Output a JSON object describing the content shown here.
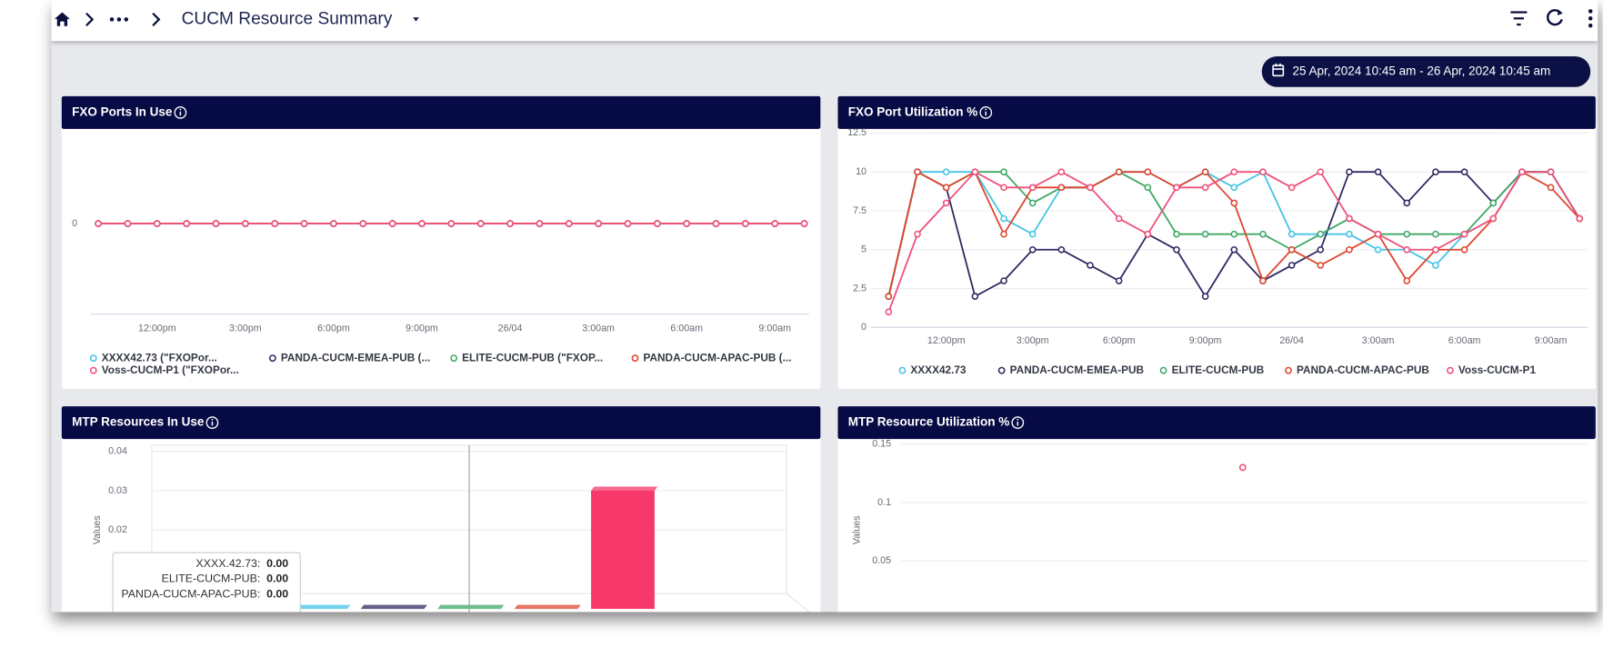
{
  "header": {
    "title": "CUCM Resource Summary"
  },
  "date_range": "25 Apr, 2024 10:45 am - 26 Apr, 2024 10:45 am",
  "chart_data": [
    {
      "type": "line",
      "title": "FXO Ports In Use",
      "x": [
        10,
        11,
        12,
        13,
        14,
        15,
        16,
        17,
        18,
        19,
        20,
        21,
        22,
        23,
        24,
        25,
        26,
        27,
        28,
        29,
        30,
        31,
        32,
        33,
        34
      ],
      "xlim": [
        9.8,
        34.2
      ],
      "xticks": [
        {
          "value": 12,
          "label": "12:00pm"
        },
        {
          "value": 15,
          "label": "3:00pm"
        },
        {
          "value": 18,
          "label": "6:00pm"
        },
        {
          "value": 21,
          "label": "9:00pm"
        },
        {
          "value": 24,
          "label": "26/04"
        },
        {
          "value": 27,
          "label": "3:00am"
        },
        {
          "value": 30,
          "label": "6:00am"
        },
        {
          "value": 33,
          "label": "9:00am"
        }
      ],
      "ylim": [
        -1,
        1
      ],
      "yticks": [
        0
      ],
      "grid": false,
      "legend": "bottom",
      "series": [
        {
          "name": "XXXX42.73 (\"FXOPor...",
          "color": "#45c4e6",
          "values": [
            0,
            0,
            0,
            0,
            0,
            0,
            0,
            0,
            0,
            0,
            0,
            0,
            0,
            0,
            0,
            0,
            0,
            0,
            0,
            0,
            0,
            0,
            0,
            0,
            0
          ]
        },
        {
          "name": "PANDA-CUCM-EMEA-PUB (...",
          "color": "#2f2a62",
          "values": [
            0,
            0,
            0,
            0,
            0,
            0,
            0,
            0,
            0,
            0,
            0,
            0,
            0,
            0,
            0,
            0,
            0,
            0,
            0,
            0,
            0,
            0,
            0,
            0,
            0
          ]
        },
        {
          "name": "ELITE-CUCM-PUB (\"FXOP...",
          "color": "#3fa864",
          "values": [
            0,
            0,
            0,
            0,
            0,
            0,
            0,
            0,
            0,
            0,
            0,
            0,
            0,
            0,
            0,
            0,
            0,
            0,
            0,
            0,
            0,
            0,
            0,
            0,
            0
          ]
        },
        {
          "name": "PANDA-CUCM-APAC-PUB (...",
          "color": "#e0452f",
          "values": [
            0,
            0,
            0,
            0,
            0,
            0,
            0,
            0,
            0,
            0,
            0,
            0,
            0,
            0,
            0,
            0,
            0,
            0,
            0,
            0,
            0,
            0,
            0,
            0,
            0
          ]
        },
        {
          "name": "Voss-CUCM-P1 (\"FXOPor...",
          "color": "#f0507a",
          "values": [
            0,
            0,
            0,
            0,
            0,
            0,
            0,
            0,
            0,
            0,
            0,
            0,
            0,
            0,
            0,
            0,
            0,
            0,
            0,
            0,
            0,
            0,
            0,
            0,
            0
          ]
        }
      ]
    },
    {
      "type": "line",
      "title": "FXO Port Utilization %",
      "x": [
        10,
        11,
        12,
        13,
        14,
        15,
        16,
        17,
        18,
        19,
        20,
        21,
        22,
        23,
        24,
        25,
        26,
        27,
        28,
        29,
        30,
        31,
        32,
        33,
        34
      ],
      "xlim": [
        9.8,
        34.2
      ],
      "xticks": [
        {
          "value": 12,
          "label": "12:00pm"
        },
        {
          "value": 15,
          "label": "3:00pm"
        },
        {
          "value": 18,
          "label": "6:00pm"
        },
        {
          "value": 21,
          "label": "9:00pm"
        },
        {
          "value": 24,
          "label": "26/04"
        },
        {
          "value": 27,
          "label": "3:00am"
        },
        {
          "value": 30,
          "label": "6:00am"
        },
        {
          "value": 33,
          "label": "9:00am"
        }
      ],
      "ylim": [
        0,
        12.5
      ],
      "yticks": [
        0,
        2.5,
        5,
        7.5,
        10,
        12.5
      ],
      "grid": true,
      "legend": "bottom",
      "series": [
        {
          "name": "XXXX42.73",
          "color": "#45c4e6",
          "values": [
            2,
            10,
            10,
            10,
            7,
            6,
            9,
            9,
            10,
            10,
            9,
            10,
            9,
            10,
            6,
            6,
            6,
            5,
            5,
            4,
            6,
            7,
            10,
            10,
            7
          ]
        },
        {
          "name": "PANDA-CUCM-EMEA-PUB",
          "color": "#2f2a62",
          "values": [
            2,
            10,
            9,
            2,
            3,
            5,
            5,
            4,
            3,
            6,
            5,
            2,
            5,
            3,
            4,
            5,
            10,
            10,
            8,
            10,
            10,
            8,
            10,
            10,
            7
          ]
        },
        {
          "name": "ELITE-CUCM-PUB",
          "color": "#3fa864",
          "values": [
            2,
            10,
            9,
            10,
            10,
            8,
            9,
            9,
            10,
            9,
            6,
            6,
            6,
            6,
            5,
            6,
            7,
            6,
            6,
            6,
            6,
            8,
            10,
            10,
            7
          ]
        },
        {
          "name": "PANDA-CUCM-APAC-PUB",
          "color": "#e0452f",
          "values": [
            2,
            10,
            9,
            10,
            6,
            9,
            9,
            9,
            10,
            10,
            9,
            10,
            8,
            3,
            5,
            4,
            5,
            6,
            3,
            5,
            5,
            7,
            10,
            9,
            7
          ]
        },
        {
          "name": "Voss-CUCM-P1",
          "color": "#f0507a",
          "values": [
            1,
            6,
            8,
            10,
            9,
            9,
            10,
            9,
            7,
            6,
            9,
            9,
            10,
            10,
            9,
            10,
            7,
            6,
            5,
            5,
            6,
            7,
            10,
            10,
            7
          ]
        }
      ]
    },
    {
      "type": "bar",
      "title": "MTP Resources In Use",
      "y_label": "Values",
      "values": [
        0,
        0,
        0,
        0,
        0.03
      ],
      "colors": [
        "#45c4e6",
        "#2f2a62",
        "#3fa864",
        "#e0452f",
        "#f7386a"
      ],
      "ylim": [
        0,
        0.04
      ],
      "yticks": [
        0.02,
        0.03,
        0.04
      ],
      "tooltip": [
        {
          "label": "XXXX.42.73:",
          "value": "0.00"
        },
        {
          "label": "ELITE-CUCM-PUB:",
          "value": "0.00"
        },
        {
          "label": "PANDA-CUCM-APAC-PUB:",
          "value": "0.00"
        }
      ]
    },
    {
      "type": "scatter",
      "title": "MTP Resource Utilization %",
      "y_label": "Values",
      "x": [
        22.3
      ],
      "values": [
        0.13
      ],
      "color": "#f0507a",
      "xlim": [
        9.8,
        34.2
      ],
      "ylim": [
        0,
        0.15
      ],
      "yticks": [
        0.05,
        0.1,
        0.15
      ],
      "grid": true
    }
  ]
}
